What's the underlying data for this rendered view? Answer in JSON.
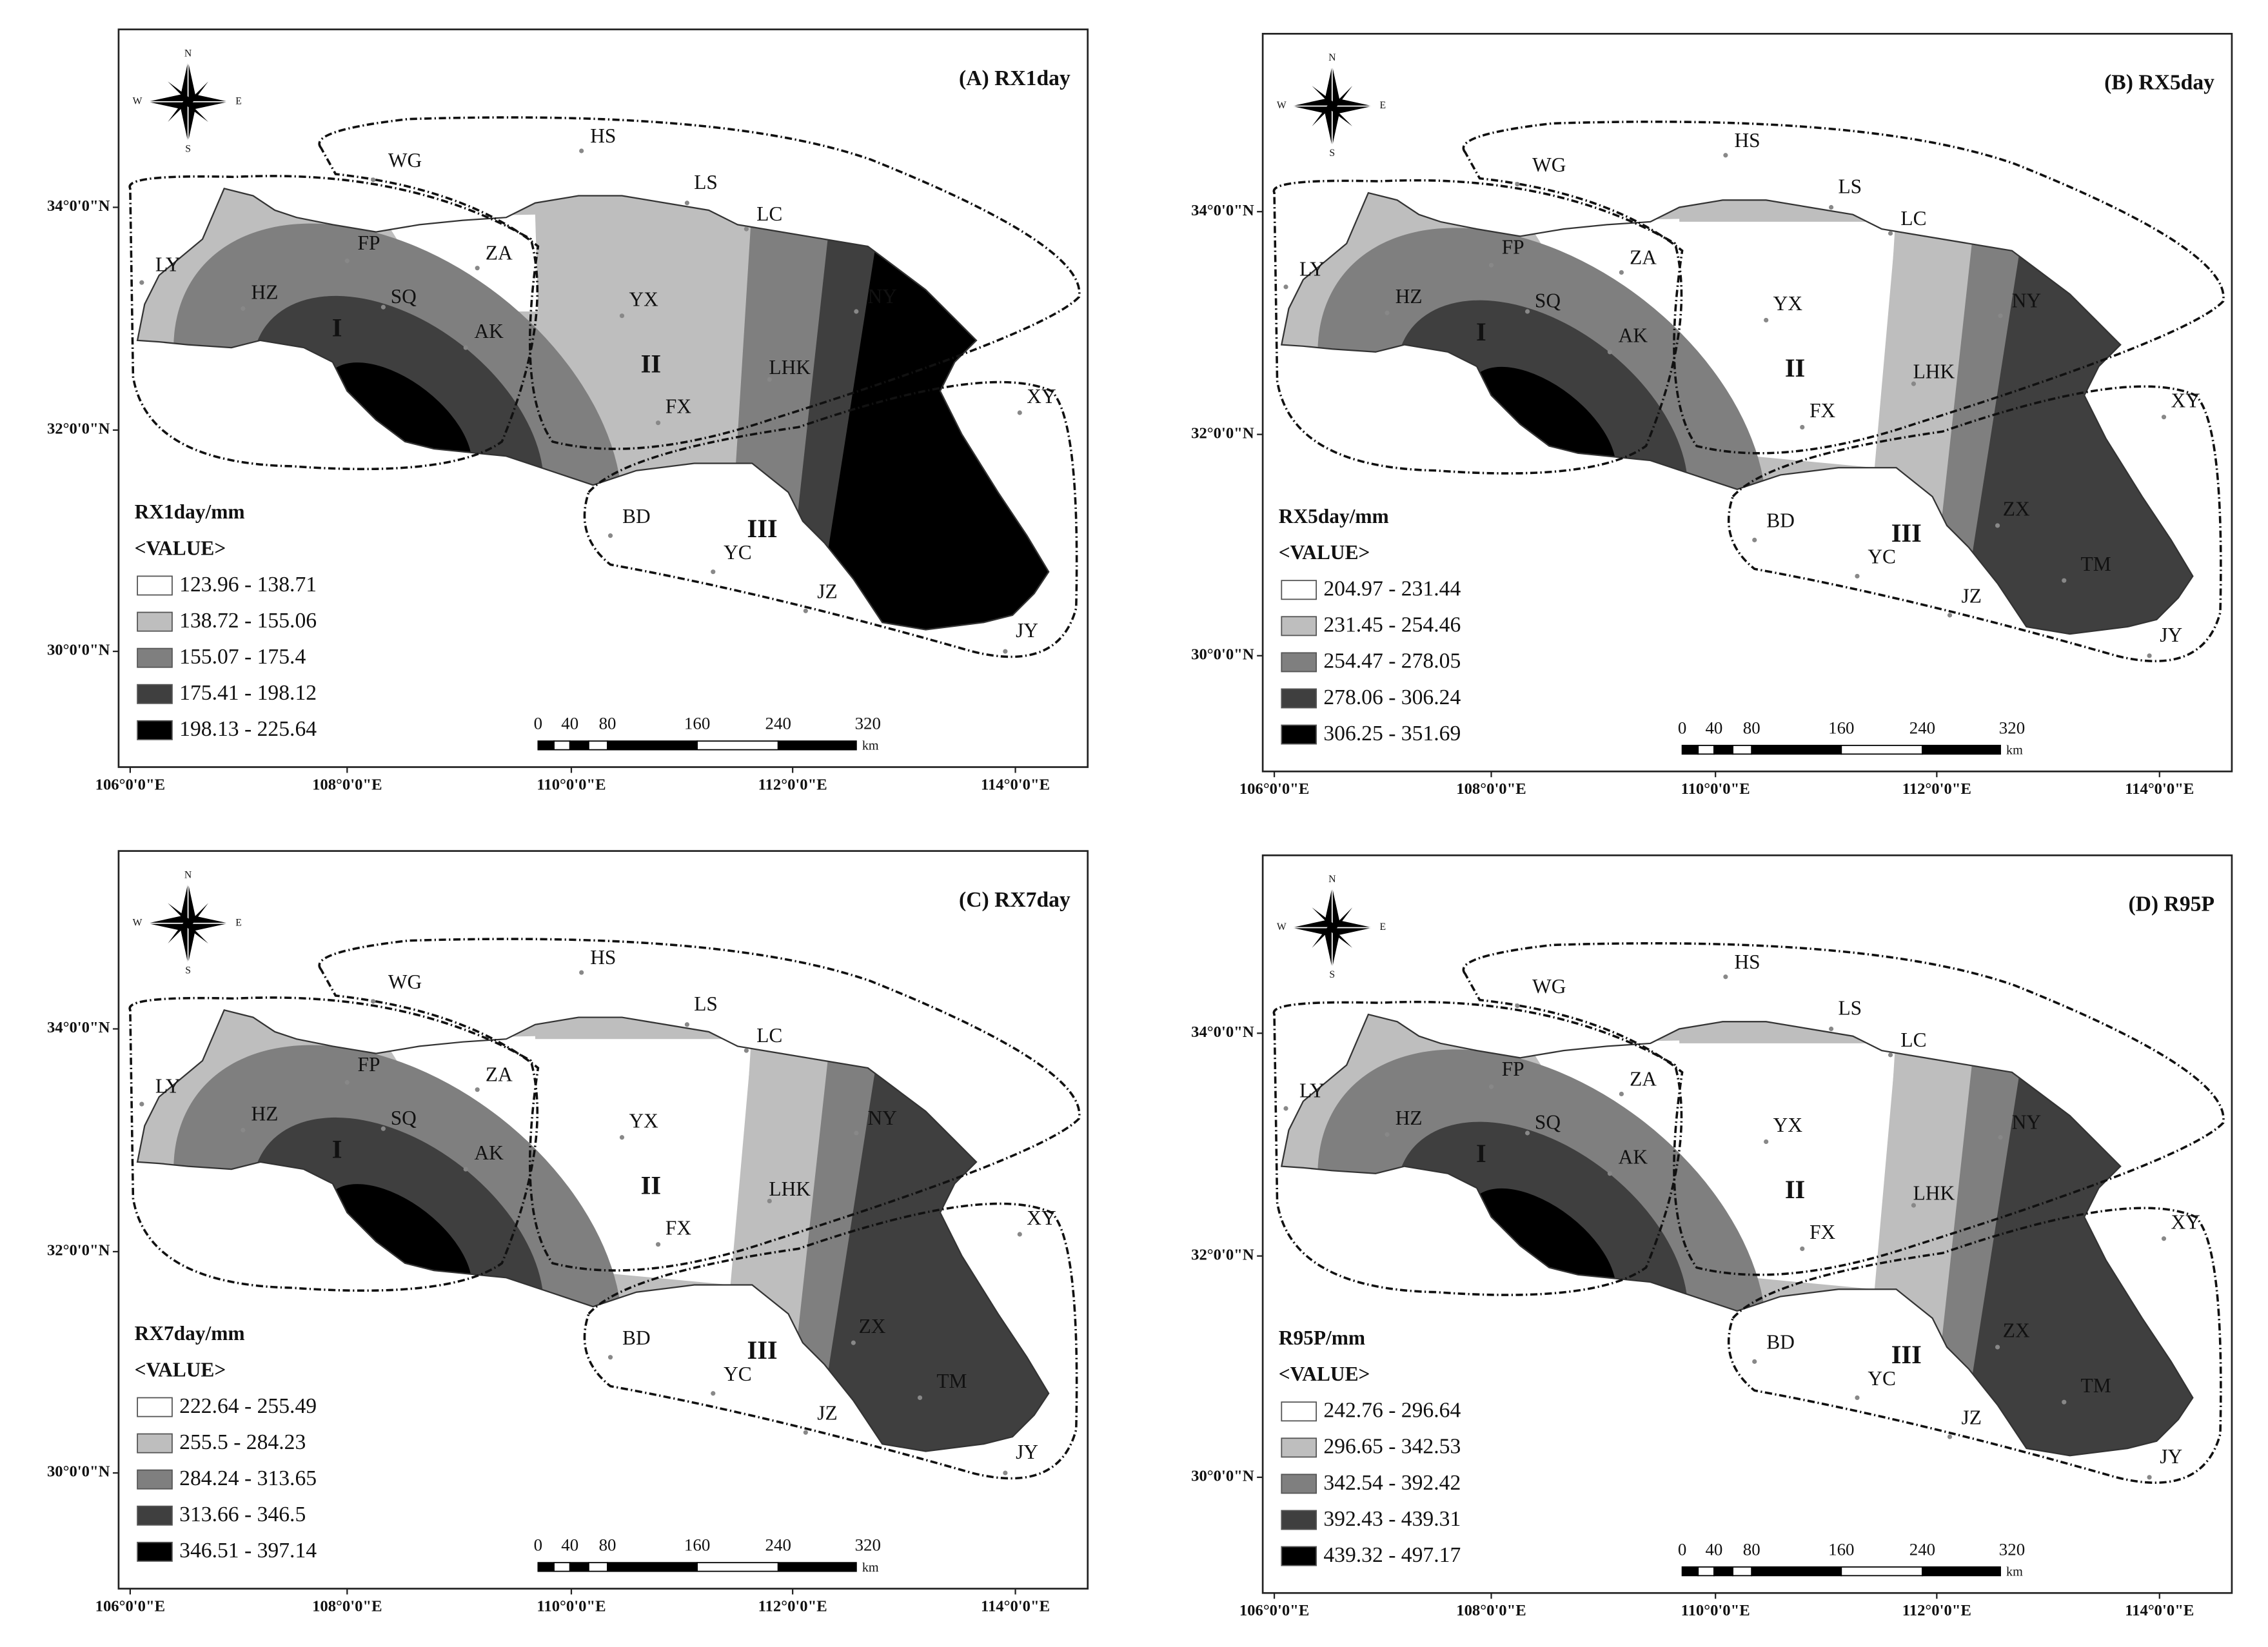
{
  "panels": [
    {
      "title": "(A) RX1day",
      "legend_title": "RX1day/mm",
      "legend_subtitle": "<VALUE>",
      "classes": [
        "123.96 - 138.71",
        "138.72 - 155.06",
        "155.07 - 175.4",
        "175.41 - 198.12",
        "198.13 - 225.64"
      ],
      "stations": [
        "WG",
        "HS",
        "LS",
        "LC",
        "LY",
        "FP",
        "ZA",
        "HZ",
        "SQ",
        "AK",
        "YX",
        "NY",
        "FX",
        "LHK",
        "XY",
        "BD",
        "YC",
        "JZ",
        "JY"
      ]
    },
    {
      "title": "(B) RX5day",
      "legend_title": "RX5day/mm",
      "legend_subtitle": "<VALUE>",
      "classes": [
        "204.97 - 231.44",
        "231.45 - 254.46",
        "254.47 - 278.05",
        "278.06 - 306.24",
        "306.25 - 351.69"
      ],
      "stations": [
        "WG",
        "HS",
        "LS",
        "LC",
        "LY",
        "FP",
        "ZA",
        "HZ",
        "SQ",
        "AK",
        "YX",
        "NY",
        "FX",
        "LHK",
        "XY",
        "BD",
        "YC",
        "JZ",
        "JY",
        "ZX",
        "TM"
      ]
    },
    {
      "title": "(C) RX7day",
      "legend_title": "RX7day/mm",
      "legend_subtitle": "<VALUE>",
      "classes": [
        "222.64 - 255.49",
        "255.5 - 284.23",
        "284.24 - 313.65",
        "313.66 - 346.5",
        "346.51 - 397.14"
      ],
      "stations": [
        "WG",
        "HS",
        "LS",
        "LC",
        "LY",
        "FP",
        "ZA",
        "HZ",
        "SQ",
        "AK",
        "YX",
        "NY",
        "FX",
        "LHK",
        "XY",
        "BD",
        "YC",
        "JZ",
        "JY",
        "ZX",
        "TM"
      ]
    },
    {
      "title": "(D) R95P",
      "legend_title": "R95P/mm",
      "legend_subtitle": "<VALUE>",
      "classes": [
        "242.76 - 296.64",
        "296.65 - 342.53",
        "342.54 - 392.42",
        "392.43 - 439.31",
        "439.32 - 497.17"
      ],
      "stations": [
        "WG",
        "HS",
        "LS",
        "LC",
        "LY",
        "FP",
        "ZA",
        "HZ",
        "SQ",
        "AK",
        "YX",
        "NY",
        "FX",
        "LHK",
        "XY",
        "BD",
        "YC",
        "JZ",
        "JY",
        "ZX",
        "TM"
      ]
    }
  ],
  "class_colors": [
    "#ffffff",
    "#bebebe",
    "#7f7f7f",
    "#3f3f3f",
    "#000000"
  ],
  "regions": [
    "I",
    "II",
    "III"
  ],
  "lat_labels": [
    "34°0'0\"N",
    "32°0'0\"N",
    "30°0'0\"N"
  ],
  "lon_labels": [
    "106°0'0\"E",
    "108°0'0\"E",
    "110°0'0\"E",
    "112°0'0\"E",
    "114°0'0\"E"
  ],
  "scale_labels": [
    "0",
    "40",
    "80",
    "160",
    "240",
    "320",
    "km"
  ],
  "compass": [
    "N",
    "S",
    "W",
    "E"
  ]
}
